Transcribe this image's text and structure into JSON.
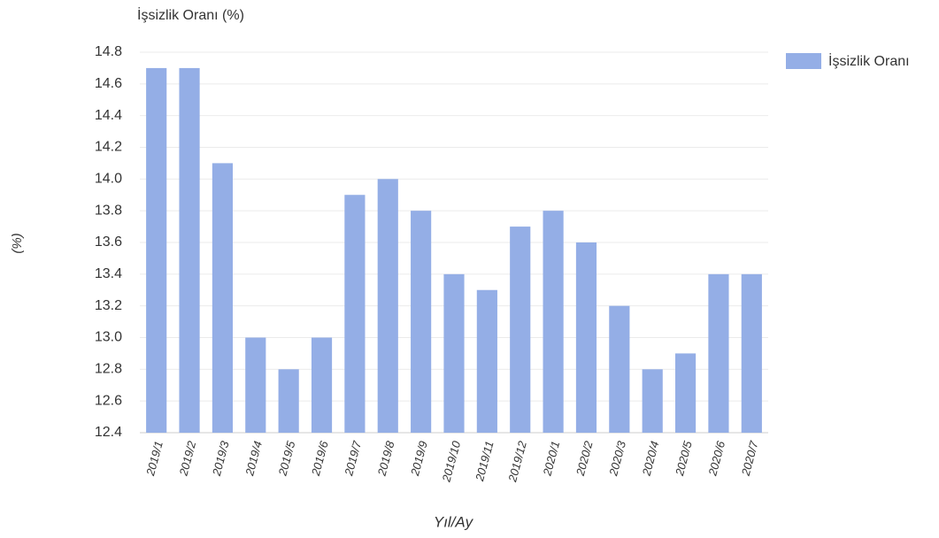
{
  "chart_data": {
    "type": "bar",
    "title": "İşsizlik Oranı (%)",
    "y_label": "(%)",
    "x_label": "Yıl/Ay",
    "categories": [
      "2019/1",
      "2019/2",
      "2019/3",
      "2019/4",
      "2019/5",
      "2019/6",
      "2019/7",
      "2019/8",
      "2019/9",
      "2019/10",
      "2019/11",
      "2019/12",
      "2020/1",
      "2020/2",
      "2020/3",
      "2020/4",
      "2020/5",
      "2020/6",
      "2020/7"
    ],
    "series": [
      {
        "name": "İşsizlik Oranı",
        "color": "#94aee6",
        "values": [
          14.7,
          14.7,
          14.1,
          13.0,
          12.8,
          13.0,
          13.9,
          14.0,
          13.8,
          13.4,
          13.3,
          13.7,
          13.8,
          13.6,
          13.2,
          12.8,
          12.9,
          13.4,
          13.4
        ]
      }
    ],
    "ylim": [
      12.4,
      14.8
    ],
    "yticks": [
      12.4,
      12.6,
      12.8,
      {
        "value": 13.0,
        "label": "13.0"
      },
      13.2,
      13.4,
      13.6,
      13.8,
      {
        "value": 14.0,
        "label": "14.0"
      },
      14.2,
      14.4,
      14.6,
      14.8
    ],
    "grid": true,
    "legend": "top-right"
  }
}
